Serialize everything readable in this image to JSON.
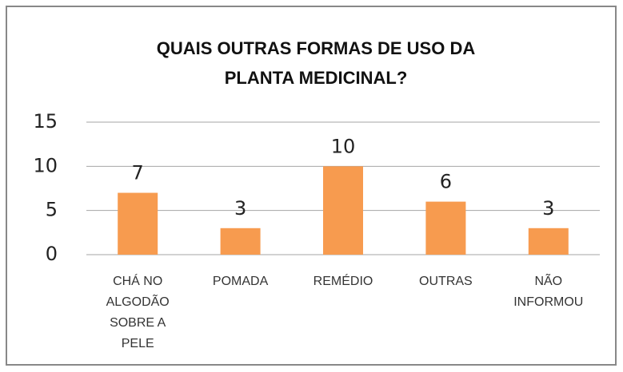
{
  "chart_data": {
    "type": "bar",
    "title": "QUAIS OUTRAS FORMAS DE USO DA PLANTA MEDICINAL?",
    "categories": [
      "CHÁ NO ALGODÃO SOBRE A PELE",
      "POMADA",
      "REMÉDIO",
      "OUTRAS",
      "NÃO INFORMOU"
    ],
    "values": [
      7,
      3,
      10,
      6,
      3
    ],
    "color": "#f79b4f",
    "ylim": [
      0,
      15
    ],
    "yticks": [
      0,
      5,
      10,
      15
    ],
    "grid": true
  }
}
